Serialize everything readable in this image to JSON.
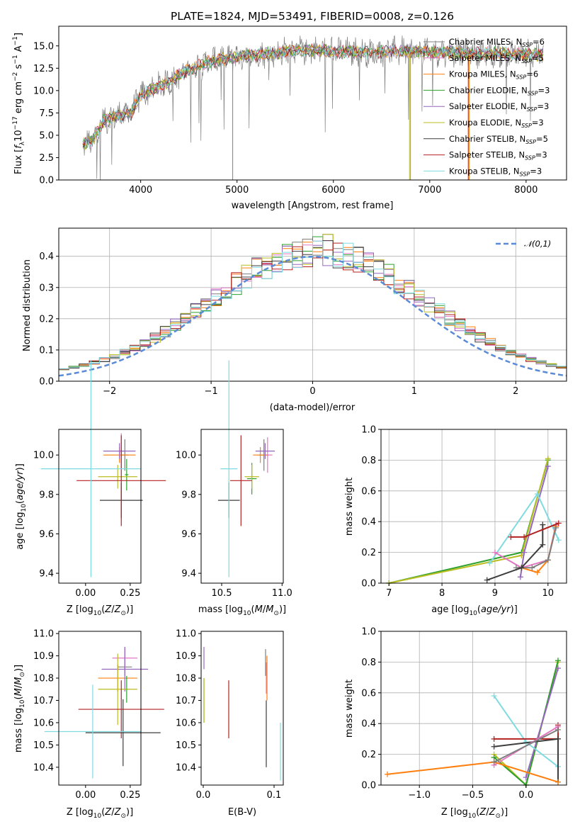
{
  "figure": {
    "title": "PLATE=1824, MJD=53491, FIBERID=0008, z=0.126"
  },
  "models": [
    {
      "name": "Chabrier MILES",
      "nssp": "6",
      "color": "#7f7f7f"
    },
    {
      "name": "Salpeter MILES",
      "nssp": "5",
      "color": "#e377c2"
    },
    {
      "name": "Kroupa MILES",
      "nssp": "6",
      "color": "#ff7f0e"
    },
    {
      "name": "Chabrier ELODIE",
      "nssp": "3",
      "color": "#2ca02c"
    },
    {
      "name": "Salpeter ELODIE",
      "nssp": "3",
      "color": "#9467bd"
    },
    {
      "name": "Kroupa ELODIE",
      "nssp": "3",
      "color": "#bcbd22"
    },
    {
      "name": "Chabrier STELIB",
      "nssp": "5",
      "color": "#3d3d3d"
    },
    {
      "name": "Salpeter STELIB",
      "nssp": "3",
      "color": "#b22222"
    },
    {
      "name": "Kroupa STELIB",
      "nssp": "3",
      "color": "#7fdbe0"
    }
  ],
  "chart_data": [
    {
      "id": "spectrum",
      "type": "line",
      "xlabel": "wavelength [Angstrom, rest frame]",
      "ylabel": "Flux [f_λ 10^-17 erg cm^-2 s^-1 A^-1]",
      "xlim": [
        3150,
        8420
      ],
      "ylim": [
        0,
        17.2
      ],
      "xticks": [
        4000,
        5000,
        6000,
        7000,
        8000
      ],
      "yticks": [
        0.0,
        2.5,
        5.0,
        7.5,
        10.0,
        12.5,
        15.0
      ],
      "grid": false,
      "legend": "right",
      "data_color": "#808080",
      "model_curve_x": [
        3400,
        3500,
        3600,
        3700,
        3800,
        3900,
        4000,
        4100,
        4200,
        4300,
        4400,
        4500,
        4700,
        5000,
        5200,
        5400,
        5600,
        5800,
        6000,
        6200,
        6400,
        6600,
        6800,
        7000,
        7200,
        7400,
        7600,
        7800,
        8000,
        8200
      ],
      "model_curve_y": [
        4.0,
        4.3,
        6.5,
        7.0,
        7.3,
        7.5,
        9.5,
        10.0,
        10.5,
        11.0,
        11.8,
        12.3,
        13.2,
        13.8,
        14.0,
        14.2,
        14.5,
        14.5,
        14.4,
        14.3,
        14.3,
        14.4,
        14.4,
        14.3,
        14.3,
        14.2,
        14.2,
        14.1,
        14.1,
        14.0
      ]
    },
    {
      "id": "residuals",
      "type": "histogram",
      "xlabel": "(data-model)/error",
      "ylabel": "Normed distribution",
      "xlim": [
        -2.5,
        2.5
      ],
      "ylim": [
        0,
        0.49
      ],
      "xticks": [
        -2,
        -1,
        0,
        1,
        2
      ],
      "yticks": [
        0.0,
        0.1,
        0.2,
        0.3,
        0.4
      ],
      "grid": true,
      "legend": "top-right",
      "reference_label": "𝒩(0,1)",
      "reference_color": "#5b8bd6",
      "bin_width": 0.1,
      "peak_values": [
        0.47,
        0.45,
        0.42,
        0.4,
        0.37
      ]
    },
    {
      "id": "age-vs-Z",
      "type": "errorbar",
      "xlabel": "Z [log10(Z/Z⊙)]",
      "ylabel": "age [log10(age/yr)]",
      "xlim": [
        -0.15,
        0.31
      ],
      "ylim": [
        9.35,
        10.13
      ],
      "xticks": [
        0.0,
        0.25
      ],
      "xtick_labels": [
        "0.00",
        "0.25"
      ],
      "yticks": [
        9.4,
        9.6,
        9.8,
        10.0
      ],
      "grid": false,
      "points": [
        {
          "model": 0,
          "x": 0.22,
          "xerr": 0.02,
          "y": 10.0,
          "yerr": 0.08
        },
        {
          "model": 1,
          "x": 0.2,
          "xerr": 0.02,
          "y": 10.02,
          "yerr": 0.09
        },
        {
          "model": 2,
          "x": 0.19,
          "xerr": 0.09,
          "y": 10.0,
          "yerr": 0.04
        },
        {
          "model": 3,
          "x": 0.23,
          "xerr": 0.01,
          "y": 9.9,
          "yerr": 0.08
        },
        {
          "model": 4,
          "x": 0.19,
          "xerr": 0.09,
          "y": 10.02,
          "yerr": 0.04
        },
        {
          "model": 5,
          "x": 0.18,
          "xerr": 0.11,
          "y": 9.89,
          "yerr": 0.06
        },
        {
          "model": 6,
          "x": 0.2,
          "xerr": 0.12,
          "y": 9.77,
          "yerr": 0.09
        },
        {
          "model": 7,
          "x": 0.2,
          "xerr": 0.25,
          "y": 9.87,
          "yerr": 0.23
        },
        {
          "model": 8,
          "x": 0.03,
          "xerr": 0.28,
          "y": 9.93,
          "yerr": 0.55
        }
      ]
    },
    {
      "id": "age-vs-mass",
      "type": "errorbar",
      "xlabel": "mass [log10(M/M⊙)]",
      "ylabel": "",
      "xlim": [
        10.33,
        11.01
      ],
      "ylim": [
        9.35,
        10.13
      ],
      "xticks": [
        10.5,
        11.0
      ],
      "xtick_labels": [
        "10.5",
        "11.0"
      ],
      "yticks": [
        9.4,
        9.6,
        9.8,
        10.0
      ],
      "grid": false,
      "points": [
        {
          "model": 0,
          "x": 10.85,
          "xerr": 0.04,
          "y": 10.0,
          "yerr": 0.08
        },
        {
          "model": 1,
          "x": 10.88,
          "xerr": 0.04,
          "y": 10.0,
          "yerr": 0.09
        },
        {
          "model": 2,
          "x": 10.82,
          "xerr": 0.06,
          "y": 10.0,
          "yerr": 0.04
        },
        {
          "model": 3,
          "x": 10.75,
          "xerr": 0.04,
          "y": 9.88,
          "yerr": 0.08
        },
        {
          "model": 4,
          "x": 10.86,
          "xerr": 0.08,
          "y": 10.02,
          "yerr": 0.04
        },
        {
          "model": 5,
          "x": 10.75,
          "xerr": 0.06,
          "y": 9.89,
          "yerr": 0.06
        },
        {
          "model": 6,
          "x": 10.56,
          "xerr": 0.09,
          "y": 9.77,
          "yerr": 0.09
        },
        {
          "model": 7,
          "x": 10.66,
          "xerr": 0.09,
          "y": 9.87,
          "yerr": 0.23
        },
        {
          "model": 8,
          "x": 10.56,
          "xerr": 0.07,
          "y": 9.93,
          "yerr": 0.55
        }
      ]
    },
    {
      "id": "weight-vs-age",
      "type": "line",
      "xlabel": "age log10(age/yr)",
      "ylabel": "mass weight",
      "xlim": [
        6.85,
        10.35
      ],
      "ylim": [
        0,
        1.0
      ],
      "xticks": [
        7,
        8,
        9,
        10
      ],
      "yticks": [
        0.0,
        0.2,
        0.4,
        0.6,
        0.8,
        1.0
      ],
      "grid": true,
      "series": [
        {
          "model": 3,
          "x": [
            7.0,
            9.5,
            10.0
          ],
          "y": [
            0.0,
            0.2,
            0.8
          ]
        },
        {
          "model": 5,
          "x": [
            7.0,
            9.5,
            10.0
          ],
          "y": [
            0.0,
            0.18,
            0.81
          ]
        },
        {
          "model": 4,
          "x": [
            9.48,
            9.55,
            10.0
          ],
          "y": [
            0.04,
            0.2,
            0.76
          ]
        },
        {
          "model": 8,
          "x": [
            8.9,
            9.8,
            10.2
          ],
          "y": [
            0.13,
            0.58,
            0.28
          ]
        },
        {
          "model": 1,
          "x": [
            9.0,
            9.5,
            10.0,
            10.15
          ],
          "y": [
            0.2,
            0.1,
            0.15,
            0.38
          ]
        },
        {
          "model": 2,
          "x": [
            9.5,
            9.8,
            10.0,
            10.15
          ],
          "y": [
            0.1,
            0.07,
            0.15,
            0.37
          ]
        },
        {
          "model": 0,
          "x": [
            9.4,
            9.7,
            10.0,
            10.15
          ],
          "y": [
            0.1,
            0.1,
            0.15,
            0.36
          ]
        },
        {
          "model": 6,
          "x": [
            8.85,
            9.5,
            9.9,
            9.9
          ],
          "y": [
            0.02,
            0.1,
            0.25,
            0.38
          ]
        },
        {
          "model": 7,
          "x": [
            9.3,
            9.55,
            10.2
          ],
          "y": [
            0.3,
            0.3,
            0.39
          ]
        }
      ]
    },
    {
      "id": "mass-vs-Z",
      "type": "errorbar",
      "xlabel": "Z [log10(Z/Z⊙)]",
      "ylabel": "mass [log10(M/M⊙)]",
      "xlim": [
        -0.15,
        0.31
      ],
      "ylim": [
        10.32,
        11.01
      ],
      "xticks": [
        0.0,
        0.25
      ],
      "xtick_labels": [
        "0.00",
        "0.25"
      ],
      "yticks": [
        10.4,
        10.5,
        10.6,
        10.7,
        10.8,
        10.9,
        11.0
      ],
      "grid": false,
      "points": [
        {
          "model": 0,
          "x": 0.22,
          "xerr": 0.04,
          "y": 10.85,
          "yerr": 0.04
        },
        {
          "model": 1,
          "x": 0.22,
          "xerr": 0.07,
          "y": 10.89,
          "yerr": 0.05
        },
        {
          "model": 2,
          "x": 0.18,
          "xerr": 0.11,
          "y": 10.8,
          "yerr": 0.06
        },
        {
          "model": 3,
          "x": 0.23,
          "xerr": 0.01,
          "y": 10.75,
          "yerr": 0.06
        },
        {
          "model": 4,
          "x": 0.22,
          "xerr": 0.13,
          "y": 10.84,
          "yerr": 0.1
        },
        {
          "model": 5,
          "x": 0.18,
          "xerr": 0.11,
          "y": 10.75,
          "yerr": 0.16
        },
        {
          "model": 6,
          "x": 0.21,
          "xerr": 0.21,
          "y": 10.555,
          "yerr": 0.15
        },
        {
          "model": 7,
          "x": 0.2,
          "xerr": 0.24,
          "y": 10.66,
          "yerr": 0.13
        },
        {
          "model": 8,
          "x": 0.04,
          "xerr": 0.27,
          "y": 10.56,
          "yerr": 0.21
        }
      ]
    },
    {
      "id": "mass-vs-EBV",
      "type": "errorbar",
      "xlabel": "E(B-V)",
      "ylabel": "",
      "xlim": [
        -0.003,
        0.113
      ],
      "ylim": [
        10.32,
        11.01
      ],
      "xticks": [
        0.0,
        0.1
      ],
      "xtick_labels": [
        "0.0",
        "0.1"
      ],
      "yticks": [
        10.4,
        10.5,
        10.6,
        10.7,
        10.8,
        10.9,
        11.0
      ],
      "grid": false,
      "points": [
        {
          "model": 0,
          "x": 0.088,
          "xerr": 0,
          "y": 10.87,
          "yerr": 0.06
        },
        {
          "model": 1,
          "x": 0.089,
          "xerr": 0,
          "y": 10.8,
          "yerr": 0.07
        },
        {
          "model": 2,
          "x": 0.09,
          "xerr": 0,
          "y": 10.8,
          "yerr": 0.1
        },
        {
          "model": 3,
          "x": 0.001,
          "xerr": 0,
          "y": 10.7,
          "yerr": 0.1
        },
        {
          "model": 4,
          "x": 0.001,
          "xerr": 0,
          "y": 10.89,
          "yerr": 0.05
        },
        {
          "model": 5,
          "x": 0.001,
          "xerr": 0,
          "y": 10.7,
          "yerr": 0.1
        },
        {
          "model": 6,
          "x": 0.089,
          "xerr": 0,
          "y": 10.55,
          "yerr": 0.15
        },
        {
          "model": 7,
          "x": 0.036,
          "xerr": 0,
          "y": 10.66,
          "yerr": 0.13
        },
        {
          "model": 8,
          "x": 0.109,
          "xerr": 0,
          "y": 10.47,
          "yerr": 0.13
        }
      ]
    },
    {
      "id": "weight-vs-Z",
      "type": "line",
      "xlabel": "Z [log10(Z/Z⊙)]",
      "ylabel": "mass weight",
      "xlim": [
        -1.36,
        0.38
      ],
      "ylim": [
        0,
        1.0
      ],
      "xticks": [
        -1.0,
        -0.5,
        0.0
      ],
      "xtick_labels": [
        "−1.0",
        "−0.5",
        "0.0"
      ],
      "yticks": [
        0.0,
        0.2,
        0.4,
        0.6,
        0.8,
        1.0
      ],
      "grid": true,
      "series": [
        {
          "model": 5,
          "x": [
            -0.3,
            0.0,
            0.3
          ],
          "y": [
            0.2,
            0.0,
            0.8
          ]
        },
        {
          "model": 3,
          "x": [
            -0.3,
            0.0,
            0.3
          ],
          "y": [
            0.18,
            0.0,
            0.81
          ]
        },
        {
          "model": 4,
          "x": [
            0.0,
            0.3
          ],
          "y": [
            0.05,
            0.76
          ]
        },
        {
          "model": 8,
          "x": [
            -0.3,
            0.0,
            0.3
          ],
          "y": [
            0.58,
            0.28,
            0.12
          ]
        },
        {
          "model": 7,
          "x": [
            -0.3,
            0.3,
            0.3
          ],
          "y": [
            0.3,
            0.3,
            0.39
          ]
        },
        {
          "model": 6,
          "x": [
            -0.3,
            0.3,
            0.3
          ],
          "y": [
            0.25,
            0.3,
            0.02
          ]
        },
        {
          "model": 1,
          "x": [
            -0.3,
            0.3
          ],
          "y": [
            0.13,
            0.38
          ]
        },
        {
          "model": 2,
          "x": [
            -1.3,
            -0.3,
            0.3
          ],
          "y": [
            0.07,
            0.15,
            0.02
          ]
        },
        {
          "model": 0,
          "x": [
            -0.3,
            0.3
          ],
          "y": [
            0.15,
            0.36
          ]
        }
      ]
    }
  ]
}
